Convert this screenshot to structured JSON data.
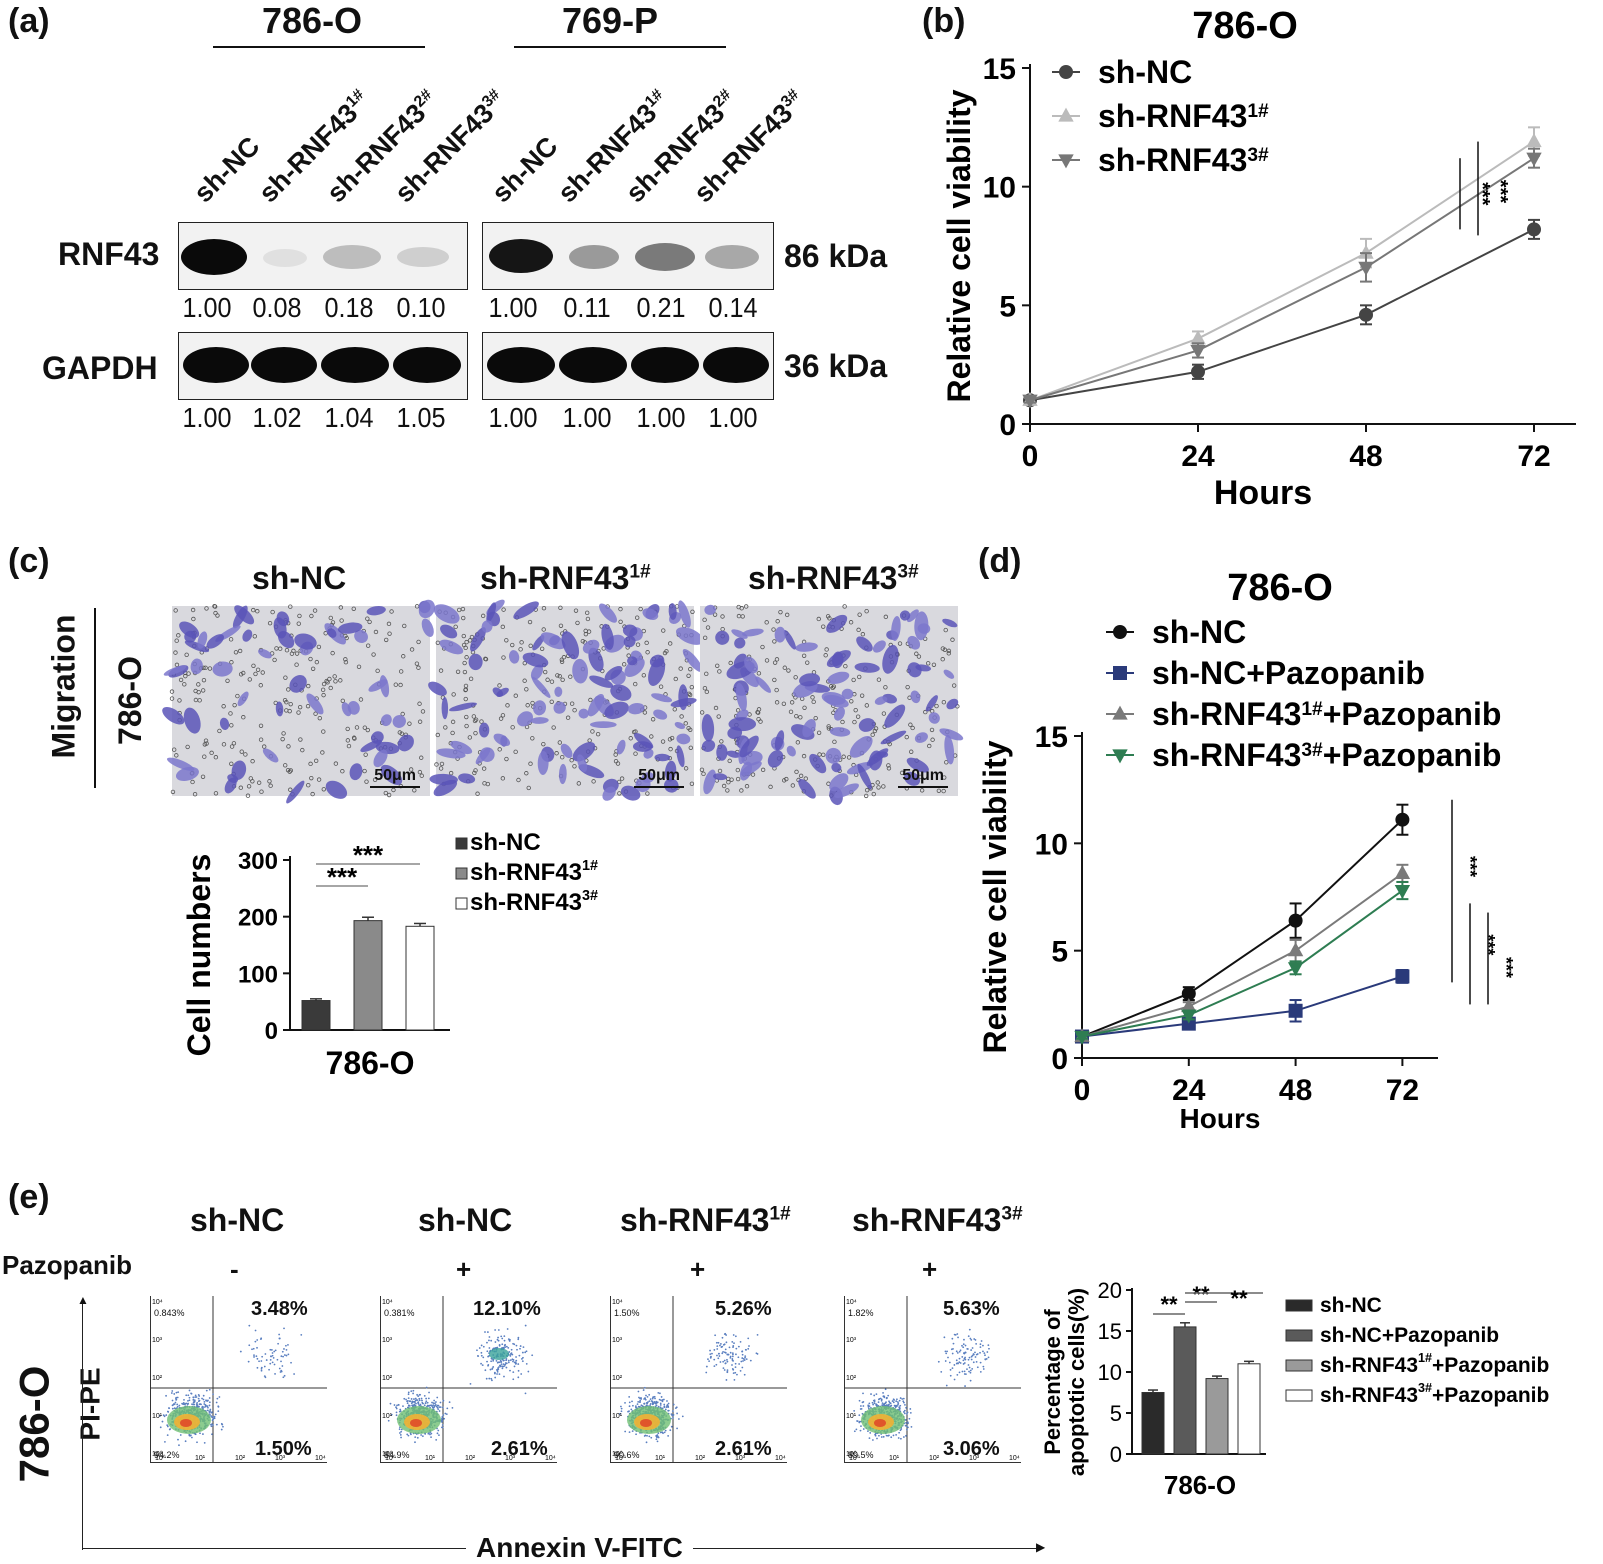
{
  "panel_a": {
    "label": "(a)",
    "cell_lines": [
      "786-O",
      "769-P"
    ],
    "lanes": [
      {
        "name": "sh-NC",
        "sup": ""
      },
      {
        "name": "sh-RNF43",
        "sup": "1#"
      },
      {
        "name": "sh-RNF43",
        "sup": "2#"
      },
      {
        "name": "sh-RNF43",
        "sup": "3#"
      }
    ],
    "rows": [
      {
        "protein": "RNF43",
        "size": "86 kDa",
        "values_786O": [
          "1.00",
          "0.08",
          "0.18",
          "0.10"
        ],
        "values_769P": [
          "1.00",
          "0.11",
          "0.21",
          "0.14"
        ]
      },
      {
        "protein": "GAPDH",
        "size": "36 kDa",
        "values_786O": [
          "1.00",
          "1.02",
          "1.04",
          "1.05"
        ],
        "values_769P": [
          "1.00",
          "1.00",
          "1.00",
          "1.00"
        ]
      }
    ]
  },
  "panel_b": {
    "label": "(b)"
  },
  "panel_c": {
    "label": "(c)",
    "side_label": "Migration",
    "cell_line": "786-O",
    "image_titles": [
      {
        "name": "sh-NC",
        "sup": ""
      },
      {
        "name": "sh-RNF43",
        "sup": "1#"
      },
      {
        "name": "sh-RNF43",
        "sup": "3#"
      }
    ],
    "scale_label": "50μm"
  },
  "panel_d": {
    "label": "(d)"
  },
  "panel_e": {
    "label": "(e)",
    "cell_line": "786-O",
    "drug_label": "Pazopanib",
    "y_axis_label": "PI-PE",
    "x_axis_label": "Annexin V-FITC",
    "columns": [
      {
        "name": "sh-NC",
        "sup": "",
        "drug": "-",
        "q2": "3.48%",
        "q3": "1.50%",
        "q1_small": "0.843%",
        "q4_small": "94.2%"
      },
      {
        "name": "sh-NC",
        "sup": "",
        "drug": "+",
        "q2": "12.10%",
        "q3": "2.61%",
        "q1_small": "0.381%",
        "q4_small": "84.9%"
      },
      {
        "name": "sh-RNF43",
        "sup": "1#",
        "drug": "+",
        "q2": "5.26%",
        "q3": "2.61%",
        "q1_small": "1.50%",
        "q4_small": "90.6%"
      },
      {
        "name": "sh-RNF43",
        "sup": "3#",
        "drug": "+",
        "q2": "5.63%",
        "q3": "3.06%",
        "q1_small": "1.82%",
        "q4_small": "89.5%"
      }
    ],
    "flow_ticks": [
      "10⁰",
      "10¹",
      "10²",
      "10³",
      "10⁴"
    ]
  },
  "chart_data": [
    {
      "id": "b",
      "type": "line",
      "title": "786-O",
      "xlabel": "Hours",
      "ylabel": "Relative cell viability",
      "x": [
        0,
        24,
        48,
        72
      ],
      "xlim": [
        0,
        78
      ],
      "ylim": [
        0,
        15
      ],
      "yticks": [
        0,
        5,
        10,
        15
      ],
      "series": [
        {
          "name": "sh-NC",
          "sup": "",
          "marker": "circle",
          "color": "#444444",
          "values": [
            1.0,
            2.2,
            4.6,
            8.2
          ],
          "errors": [
            0.1,
            0.3,
            0.4,
            0.4
          ]
        },
        {
          "name": "sh-RNF43",
          "sup": "1#",
          "marker": "triangle-up",
          "color": "#bbbbbb",
          "values": [
            1.0,
            3.6,
            7.2,
            11.9
          ],
          "errors": [
            0.1,
            0.3,
            0.6,
            0.6
          ]
        },
        {
          "name": "sh-RNF43",
          "sup": "3#",
          "marker": "triangle-down",
          "color": "#777777",
          "values": [
            1.0,
            3.1,
            6.6,
            11.2
          ],
          "errors": [
            0.1,
            0.3,
            0.6,
            0.4
          ]
        }
      ],
      "annotations": [
        "***",
        "***"
      ]
    },
    {
      "id": "c",
      "type": "bar",
      "xlabel": "786-O",
      "ylabel": "Cell numbers",
      "ylim": [
        0,
        300
      ],
      "yticks": [
        0,
        100,
        200,
        300
      ],
      "series": [
        {
          "name": "sh-NC",
          "sup": "",
          "color": "#3a3a3a",
          "value": 52,
          "error": 3
        },
        {
          "name": "sh-RNF43",
          "sup": "1#",
          "color": "#8a8a8a",
          "value": 193,
          "error": 6
        },
        {
          "name": "sh-RNF43",
          "sup": "3#",
          "color": "#ffffff",
          "value": 183,
          "error": 5
        }
      ],
      "annotations": [
        "***",
        "***"
      ]
    },
    {
      "id": "d",
      "type": "line",
      "title": "786-O",
      "xlabel": "Hours",
      "ylabel": "Relative cell viability",
      "x": [
        0,
        24,
        48,
        72
      ],
      "xlim": [
        0,
        80
      ],
      "ylim": [
        0,
        15
      ],
      "yticks": [
        0,
        5,
        10,
        15
      ],
      "series": [
        {
          "name": "sh-NC",
          "sup": "",
          "marker": "circle",
          "color": "#111111",
          "values": [
            1.0,
            3.0,
            6.4,
            11.1
          ],
          "errors": [
            0.1,
            0.3,
            0.8,
            0.7
          ]
        },
        {
          "name": "sh-NC+Pazopanib",
          "sup": "",
          "marker": "square",
          "color": "#2a3a7a",
          "values": [
            1.0,
            1.6,
            2.2,
            3.8
          ],
          "errors": [
            0.1,
            0.2,
            0.5,
            0.3
          ]
        },
        {
          "name": "sh-RNF43",
          "sup": "1#",
          "suffix": "+Pazopanib",
          "marker": "triangle-up",
          "color": "#7a7a7a",
          "values": [
            1.0,
            2.4,
            5.0,
            8.6
          ],
          "errors": [
            0.1,
            0.2,
            0.5,
            0.4
          ]
        },
        {
          "name": "sh-RNF43",
          "sup": "3#",
          "suffix": "+Pazopanib",
          "marker": "triangle-down",
          "color": "#2e7d52",
          "values": [
            1.0,
            2.0,
            4.2,
            7.8
          ],
          "errors": [
            0.1,
            0.2,
            0.3,
            0.4
          ]
        }
      ],
      "annotations": [
        "***",
        "***",
        "***"
      ]
    },
    {
      "id": "e",
      "type": "bar",
      "xlabel": "786-O",
      "ylabel": "Percentage of apoptotic cells(%)",
      "ylabel_lines": [
        "Percentage of",
        "apoptotic  cells(%)"
      ],
      "ylim": [
        0,
        20
      ],
      "yticks": [
        0,
        5,
        10,
        15,
        20
      ],
      "series": [
        {
          "name": "sh-NC",
          "sup": "",
          "color": "#2a2a2a",
          "value": 7.5,
          "error": 0.3
        },
        {
          "name": "sh-NC+Pazopanib",
          "sup": "",
          "color": "#5a5a5a",
          "value": 15.5,
          "error": 0.5
        },
        {
          "name": "sh-RNF43",
          "sup": "1#",
          "suffix": "+Pazopanib",
          "color": "#9a9a9a",
          "value": 9.2,
          "error": 0.3
        },
        {
          "name": "sh-RNF43",
          "sup": "3#",
          "suffix": "+Pazopanib",
          "color": "#ffffff",
          "value": 11.0,
          "error": 0.3
        }
      ],
      "annotations": [
        "**",
        "**",
        "**"
      ]
    }
  ]
}
